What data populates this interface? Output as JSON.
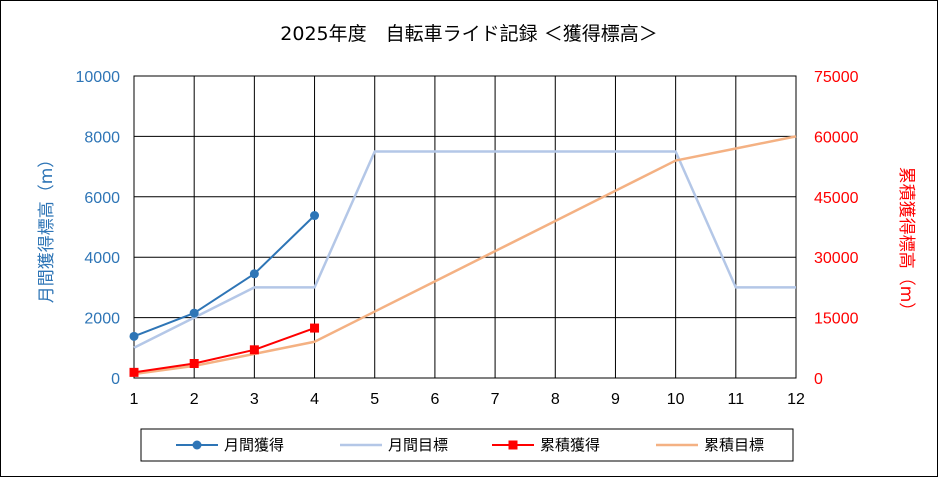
{
  "chart_data": {
    "type": "line",
    "title": "2025年度　自転車ライド記録 ＜獲得標高＞",
    "xlabel": "",
    "ylabel": "月間獲得標高（m）",
    "y2label": "累積獲得標高（m）",
    "x": [
      1,
      2,
      3,
      4,
      5,
      6,
      7,
      8,
      9,
      10,
      11,
      12
    ],
    "xlim": [
      1,
      12
    ],
    "ylim": [
      0,
      10000
    ],
    "y_ticks": [
      0,
      2000,
      4000,
      6000,
      8000,
      10000
    ],
    "y2lim": [
      0,
      75000
    ],
    "y2_ticks": [
      0,
      15000,
      30000,
      45000,
      60000,
      75000
    ],
    "grid": true,
    "legend": "bottom",
    "series": [
      {
        "name": "月間獲得",
        "axis": "left",
        "color": "#2E75B6",
        "marker": "circle",
        "values": [
          1380,
          2150,
          3450,
          5380,
          null,
          null,
          null,
          null,
          null,
          null,
          null,
          null
        ]
      },
      {
        "name": "月間目標",
        "axis": "left",
        "color": "#B4C7E7",
        "marker": "none",
        "values": [
          1000,
          2000,
          3000,
          3000,
          7500,
          7500,
          7500,
          7500,
          7500,
          7500,
          3000,
          3000
        ]
      },
      {
        "name": "累積獲得",
        "axis": "right",
        "color": "#FF0000",
        "marker": "square",
        "values": [
          1400,
          3600,
          7000,
          12400,
          null,
          null,
          null,
          null,
          null,
          null,
          null,
          null
        ]
      },
      {
        "name": "累積目標",
        "axis": "right",
        "color": "#F4B183",
        "marker": "none",
        "values": [
          1000,
          3000,
          6000,
          9000,
          16500,
          24000,
          31500,
          39000,
          46500,
          54000,
          57000,
          60000
        ]
      }
    ]
  }
}
